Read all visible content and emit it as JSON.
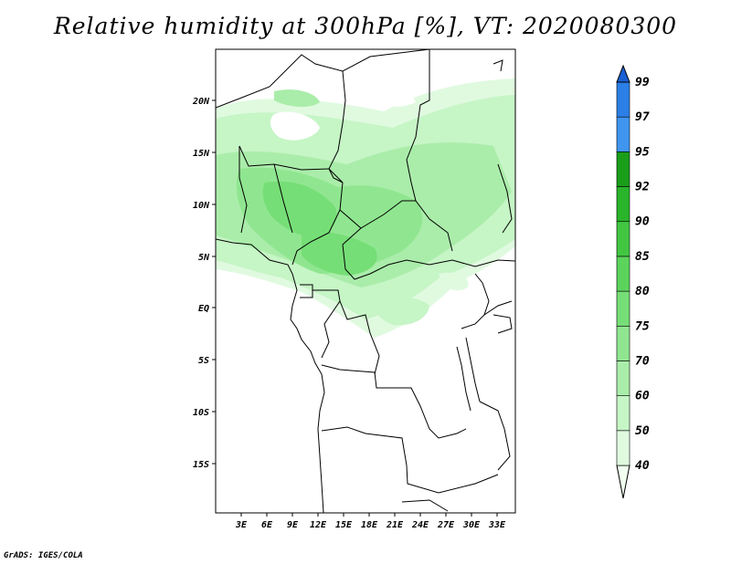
{
  "title": "Relative humidity at 300hPa [%], VT: 2020080300",
  "credit": "GrADS: IGES/COLA",
  "map": {
    "lon_range": [
      0,
      35
    ],
    "lat_range": [
      -20,
      25
    ],
    "lon_ticks": [
      "3E",
      "6E",
      "9E",
      "12E",
      "15E",
      "18E",
      "21E",
      "24E",
      "27E",
      "30E",
      "33E"
    ],
    "lat_ticks": [
      "20N",
      "15N",
      "10N",
      "5N",
      "EQ",
      "5S",
      "10S",
      "15S"
    ]
  },
  "colorbar": {
    "levels": [
      "40",
      "50",
      "60",
      "70",
      "75",
      "80",
      "85",
      "90",
      "92",
      "95",
      "97",
      "99"
    ],
    "colors": [
      "#f0fff0",
      "#e0fae0",
      "#c6f5c6",
      "#aaedaa",
      "#90e690",
      "#76de76",
      "#5cd45c",
      "#42c642",
      "#2ab42a",
      "#1a9e1a",
      "#4095ef",
      "#2b7fe6",
      "#1a60d2"
    ]
  }
}
